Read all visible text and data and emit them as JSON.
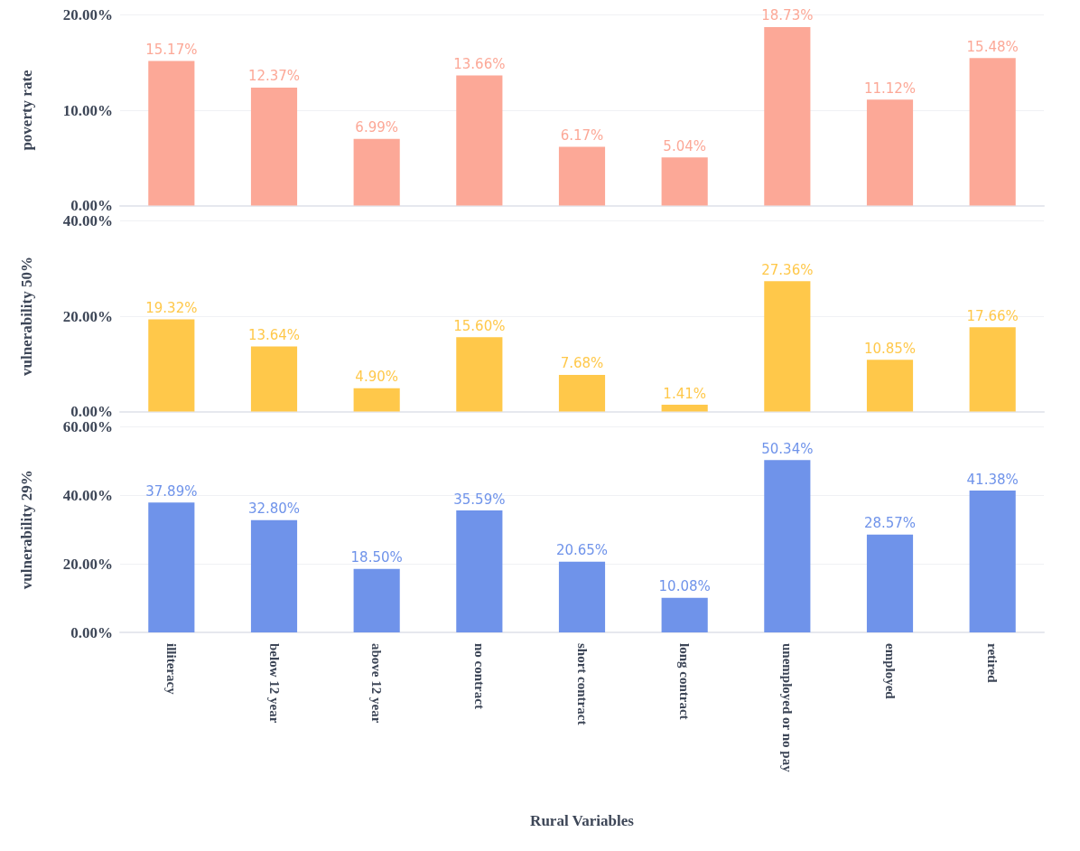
{
  "chart_data": [
    {
      "type": "bar",
      "ylabel": "poverty rate",
      "values": [
        15.17,
        12.37,
        6.99,
        13.66,
        6.17,
        5.04,
        18.73,
        11.12,
        15.48
      ],
      "value_labels": [
        "15.17%",
        "12.37%",
        "6.99%",
        "13.66%",
        "6.17%",
        "5.04%",
        "18.73%",
        "11.12%",
        "15.48%"
      ],
      "color": "#fca897",
      "ylim": [
        0,
        20
      ],
      "yticks": [
        {
          "value": 0,
          "label": "0.00%"
        },
        {
          "value": 10,
          "label": "10.00%"
        },
        {
          "value": 20,
          "label": "20.00%"
        }
      ],
      "grid": "y",
      "tick_labels": "y"
    },
    {
      "type": "bar",
      "ylabel": "vulnerability 50%",
      "values": [
        19.32,
        13.64,
        4.9,
        15.6,
        7.68,
        1.41,
        27.36,
        10.85,
        17.66
      ],
      "value_labels": [
        "19.32%",
        "13.64%",
        "4.90%",
        "15.60%",
        "7.68%",
        "1.41%",
        "27.36%",
        "10.85%",
        "17.66%"
      ],
      "color": "#ffc84a",
      "ylim": [
        0,
        40
      ],
      "yticks": [
        {
          "value": 0,
          "label": "0.00%"
        },
        {
          "value": 20,
          "label": "20.00%"
        },
        {
          "value": 40,
          "label": "40.00%"
        }
      ],
      "grid": "y",
      "tick_labels": "y"
    },
    {
      "type": "bar",
      "ylabel": "vulnerability 29%",
      "xlabel": "Rural Variables",
      "categories": [
        "illiteracy",
        "below 12 year",
        "above 12 year",
        "no contract",
        "short contract",
        "long contract",
        "unemployed or no pay",
        "employed",
        "retired"
      ],
      "values": [
        37.89,
        32.8,
        18.5,
        35.59,
        20.65,
        10.08,
        50.34,
        28.57,
        41.38
      ],
      "value_labels": [
        "37.89%",
        "32.80%",
        "18.50%",
        "35.59%",
        "20.65%",
        "10.08%",
        "50.34%",
        "28.57%",
        "41.38%"
      ],
      "color": "#6f93ea",
      "ylim": [
        0,
        60
      ],
      "yticks": [
        {
          "value": 0,
          "label": "0.00%"
        },
        {
          "value": 20,
          "label": "20.00%"
        },
        {
          "value": 40,
          "label": "40.00%"
        },
        {
          "value": 60,
          "label": "60.00%"
        }
      ],
      "grid": "y"
    }
  ]
}
